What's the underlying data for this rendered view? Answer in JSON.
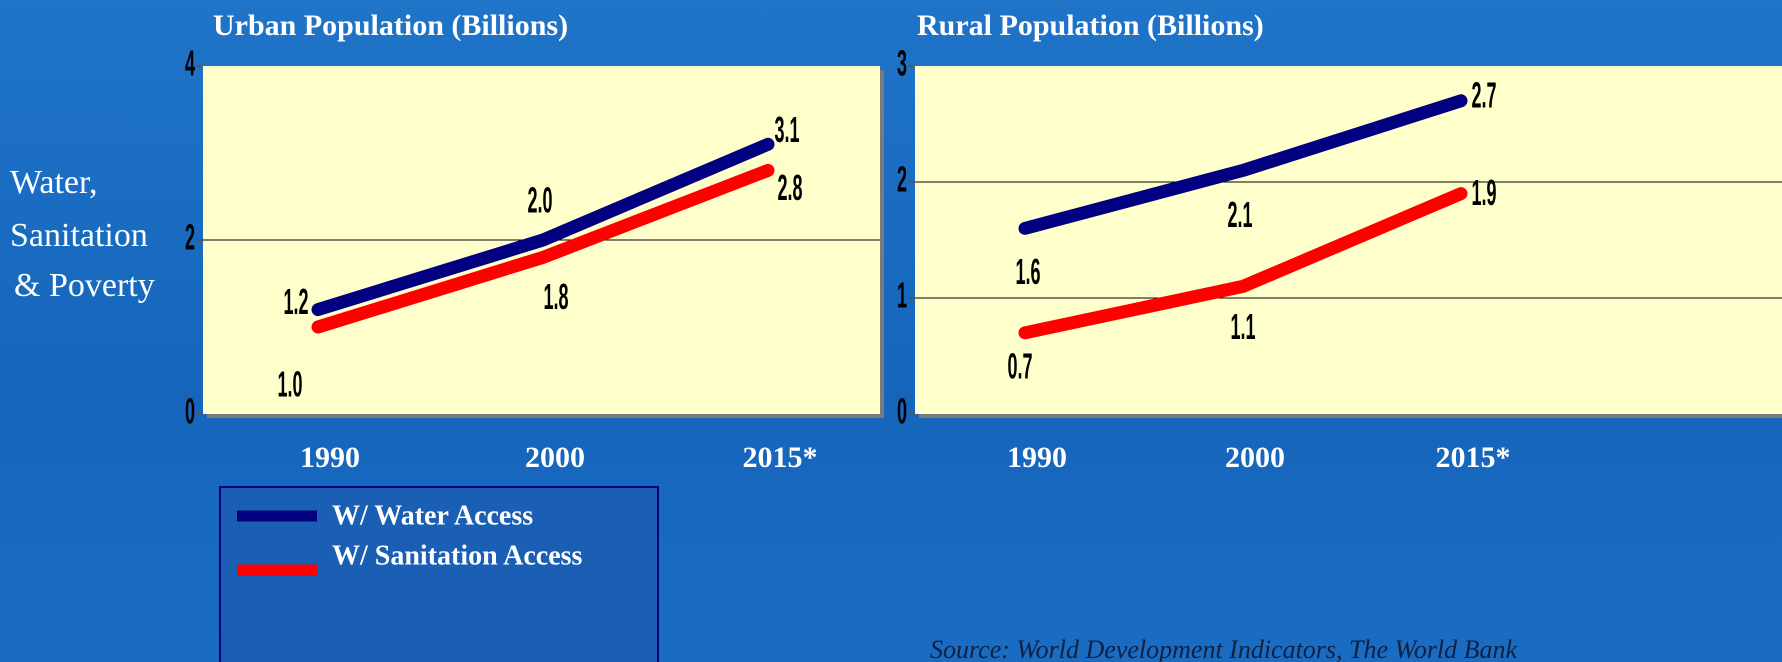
{
  "side_text": [
    "Water,",
    "Sanitation",
    "& Poverty"
  ],
  "source": "Source: World Development Indicators, The World Bank",
  "chart_data": [
    {
      "type": "line",
      "title": "Urban Population (Billions)",
      "categories": [
        "1990",
        "2000",
        "2015*"
      ],
      "ylim": [
        0,
        4
      ],
      "yticks": [
        0,
        2,
        4
      ],
      "grid": true,
      "series": [
        {
          "name": "W/ Water Access",
          "color": "#000080",
          "values": [
            1.2,
            2.0,
            3.1
          ],
          "value_labels": [
            "1.2",
            "2.0",
            "3.1"
          ]
        },
        {
          "name": "W/ Sanitation Access",
          "color": "#ff0000",
          "values": [
            1.0,
            1.8,
            2.8
          ],
          "value_labels": [
            "1.0",
            "1.8",
            "2.8"
          ]
        }
      ]
    },
    {
      "type": "line",
      "title": "Rural Population (Billions)",
      "categories": [
        "1990",
        "2000",
        "2015*"
      ],
      "ylim": [
        0,
        3
      ],
      "yticks": [
        0,
        1,
        2,
        3
      ],
      "grid": true,
      "series": [
        {
          "color": "#000080",
          "values": [
            1.6,
            2.1,
            2.7
          ]
        },
        {
          "color": "#ff0000",
          "values": [
            0.7,
            1.1,
            1.9
          ]
        }
      ]
    }
  ]
}
